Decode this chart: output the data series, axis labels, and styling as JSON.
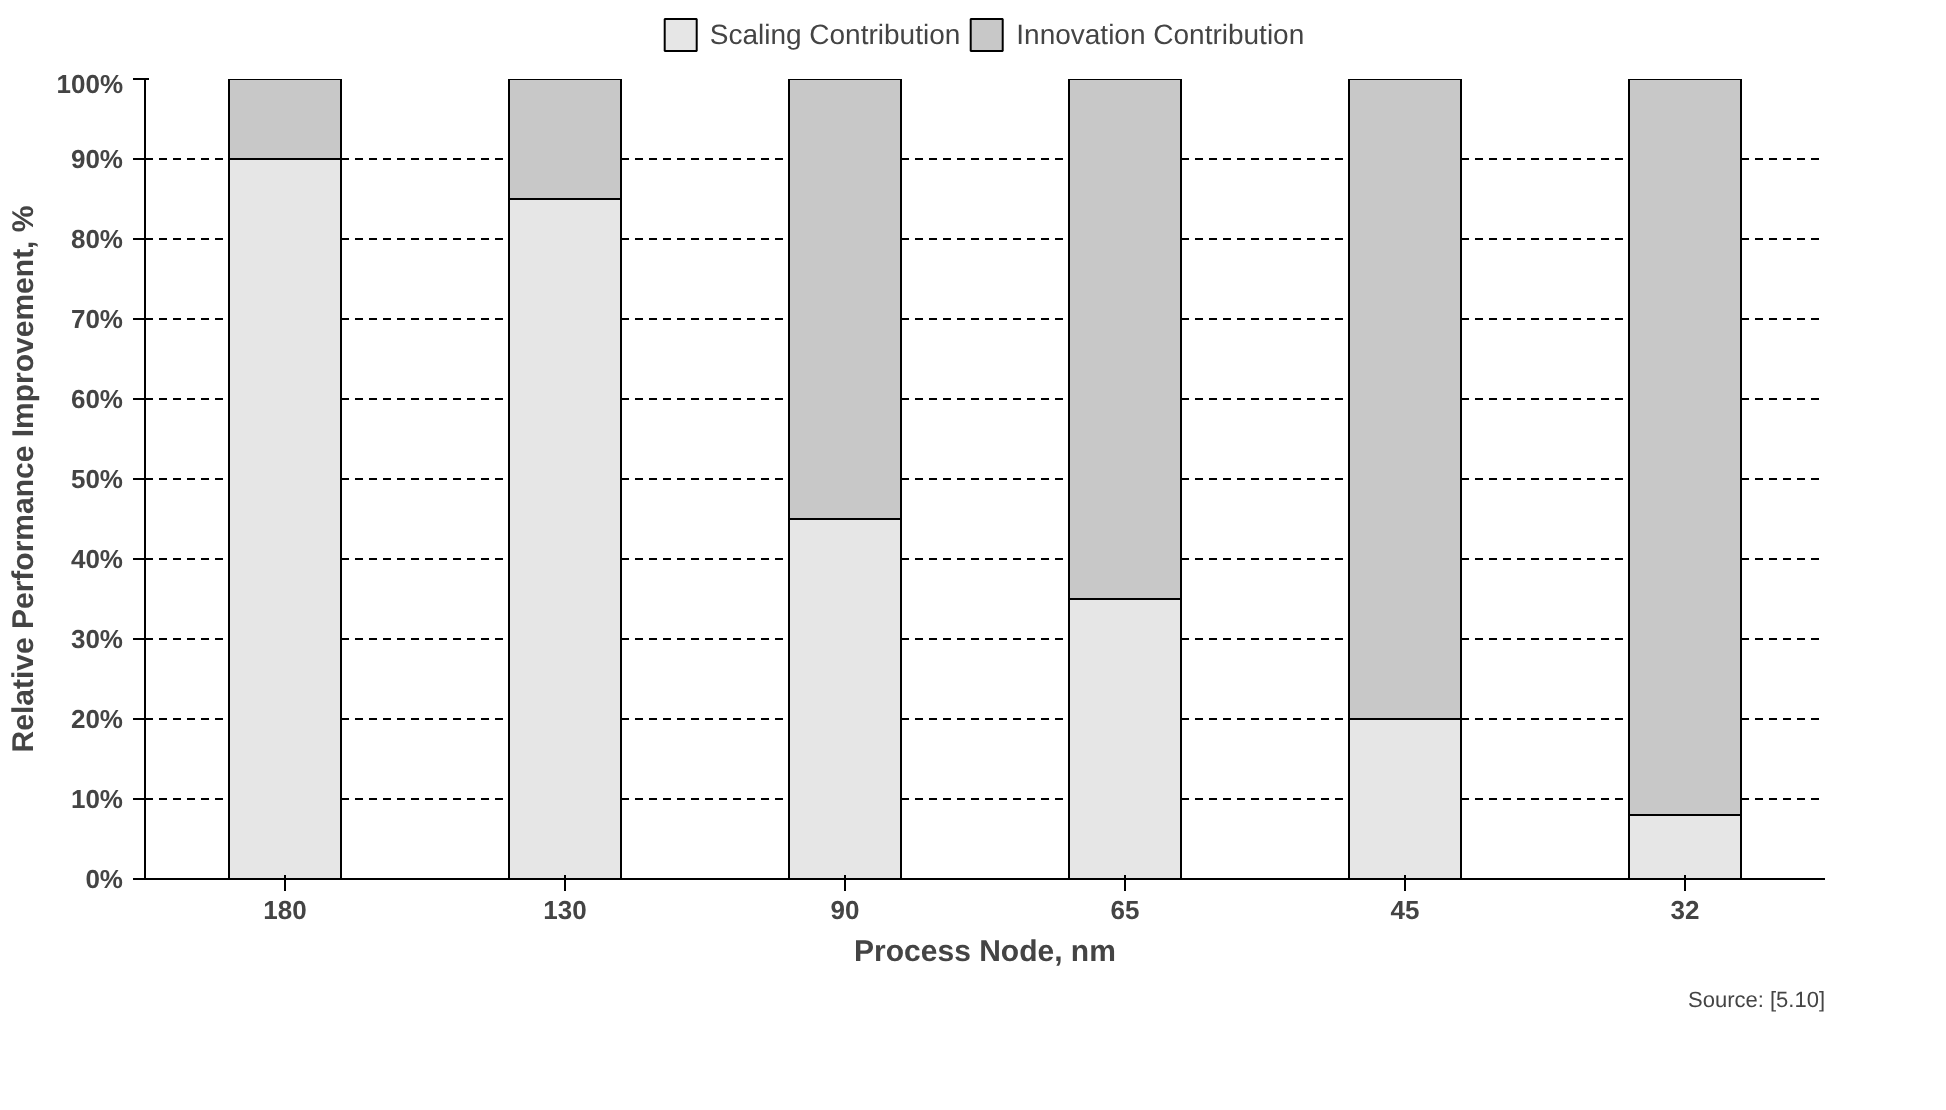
{
  "chart_data": {
    "type": "bar",
    "stacked": true,
    "xlabel": "Process Node, nm",
    "ylabel": "Relative Performance Improvement, %",
    "categories": [
      "180",
      "130",
      "90",
      "65",
      "45",
      "32"
    ],
    "series": [
      {
        "name": "Scaling Contribution",
        "color": "#e6e6e6",
        "values": [
          90,
          85,
          45,
          35,
          20,
          8
        ]
      },
      {
        "name": "Innovation Contribution",
        "color": "#c8c8c8",
        "values": [
          10,
          15,
          55,
          65,
          80,
          92
        ]
      }
    ],
    "ylim": [
      0,
      100
    ],
    "yticks": [
      {
        "value": 0,
        "label": "0%"
      },
      {
        "value": 10,
        "label": "10%"
      },
      {
        "value": 20,
        "label": "20%"
      },
      {
        "value": 30,
        "label": "30%"
      },
      {
        "value": 40,
        "label": "40%"
      },
      {
        "value": 50,
        "label": "50%"
      },
      {
        "value": 60,
        "label": "60%"
      },
      {
        "value": 70,
        "label": "70%"
      },
      {
        "value": 80,
        "label": "80%"
      },
      {
        "value": 90,
        "label": "90%"
      },
      {
        "value": 100,
        "label": "100%"
      }
    ],
    "grid": "y",
    "legend": "top",
    "annotations": [
      "Source: [5.10]"
    ]
  }
}
